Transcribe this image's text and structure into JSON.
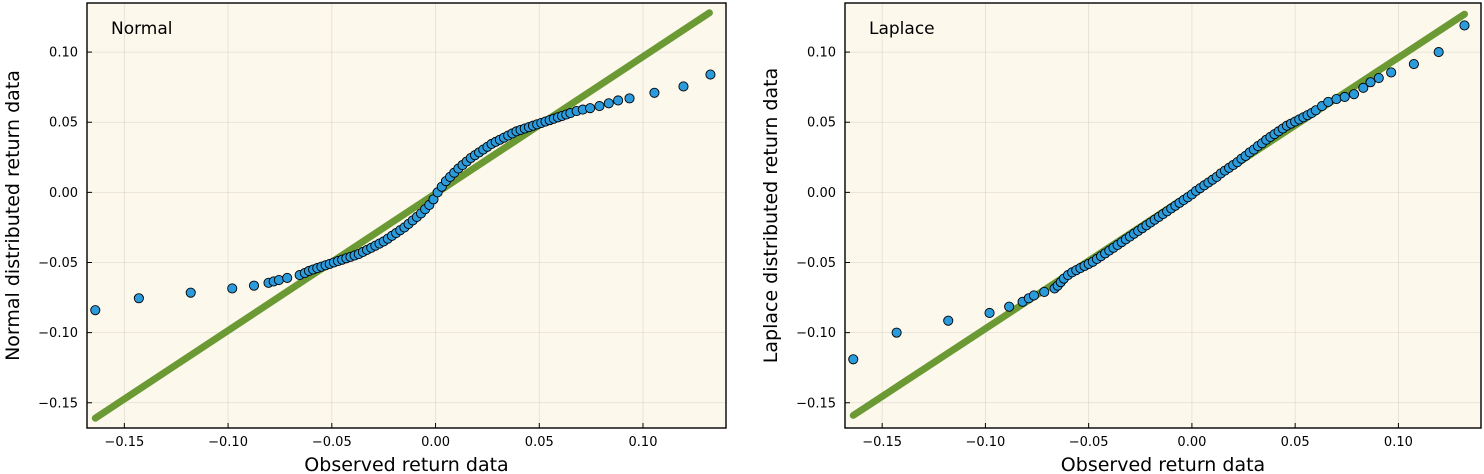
{
  "chart_data": [
    {
      "type": "scatter",
      "title": "Normal",
      "xlabel": "Observed return data",
      "ylabel": "Normal distributed return data",
      "xlim": [
        -0.168,
        0.14
      ],
      "ylim": [
        -0.168,
        0.135
      ],
      "xticks": [
        -0.15,
        -0.1,
        -0.05,
        0.0,
        0.05,
        0.1
      ],
      "xtick_labels": [
        "−0.15",
        "−0.10",
        "−0.05",
        "0.00",
        "0.05",
        "0.10"
      ],
      "yticks": [
        -0.15,
        -0.1,
        -0.05,
        0.0,
        0.05,
        0.1
      ],
      "ytick_labels": [
        "−0.15",
        "−0.10",
        "−0.05",
        "0.00",
        "0.05",
        "0.10"
      ],
      "grid": true,
      "legend": "none",
      "reference_line": {
        "x": [
          -0.164,
          0.132
        ],
        "y": [
          -0.161,
          0.128
        ],
        "color": "#6b9a34"
      },
      "marker_color": "#2b9bdc",
      "background": "#fdf8ec",
      "points": [
        [
          -0.164,
          -0.084
        ],
        [
          -0.143,
          -0.0755
        ],
        [
          -0.118,
          -0.0715
        ],
        [
          -0.098,
          -0.0685
        ],
        [
          -0.0875,
          -0.0665
        ],
        [
          -0.0805,
          -0.0645
        ],
        [
          -0.078,
          -0.0635
        ],
        [
          -0.0755,
          -0.0625
        ],
        [
          -0.0715,
          -0.061
        ],
        [
          -0.0655,
          -0.059
        ],
        [
          -0.063,
          -0.0575
        ],
        [
          -0.061,
          -0.056
        ],
        [
          -0.059,
          -0.055
        ],
        [
          -0.057,
          -0.054
        ],
        [
          -0.055,
          -0.053
        ],
        [
          -0.053,
          -0.052
        ],
        [
          -0.051,
          -0.051
        ],
        [
          -0.049,
          -0.05
        ],
        [
          -0.047,
          -0.049
        ],
        [
          -0.045,
          -0.048
        ],
        [
          -0.043,
          -0.047
        ],
        [
          -0.041,
          -0.046
        ],
        [
          -0.039,
          -0.045
        ],
        [
          -0.037,
          -0.044
        ],
        [
          -0.035,
          -0.0425
        ],
        [
          -0.033,
          -0.041
        ],
        [
          -0.031,
          -0.0395
        ],
        [
          -0.029,
          -0.038
        ],
        [
          -0.027,
          -0.0365
        ],
        [
          -0.025,
          -0.035
        ],
        [
          -0.023,
          -0.033
        ],
        [
          -0.021,
          -0.031
        ],
        [
          -0.019,
          -0.029
        ],
        [
          -0.017,
          -0.027
        ],
        [
          -0.015,
          -0.025
        ],
        [
          -0.013,
          -0.0225
        ],
        [
          -0.011,
          -0.02
        ],
        [
          -0.009,
          -0.0175
        ],
        [
          -0.007,
          -0.015
        ],
        [
          -0.005,
          -0.012
        ],
        [
          -0.003,
          -0.009
        ],
        [
          -0.001,
          -0.005
        ],
        [
          0.001,
          0.0
        ],
        [
          0.003,
          0.004
        ],
        [
          0.005,
          0.008
        ],
        [
          0.007,
          0.011
        ],
        [
          0.009,
          0.014
        ],
        [
          0.011,
          0.017
        ],
        [
          0.013,
          0.0195
        ],
        [
          0.015,
          0.022
        ],
        [
          0.017,
          0.0245
        ],
        [
          0.019,
          0.0265
        ],
        [
          0.021,
          0.0285
        ],
        [
          0.023,
          0.0305
        ],
        [
          0.025,
          0.0325
        ],
        [
          0.027,
          0.0345
        ],
        [
          0.029,
          0.036
        ],
        [
          0.031,
          0.0375
        ],
        [
          0.033,
          0.039
        ],
        [
          0.035,
          0.0405
        ],
        [
          0.037,
          0.042
        ],
        [
          0.039,
          0.0435
        ],
        [
          0.041,
          0.0445
        ],
        [
          0.043,
          0.0455
        ],
        [
          0.045,
          0.0465
        ],
        [
          0.047,
          0.0475
        ],
        [
          0.049,
          0.0485
        ],
        [
          0.051,
          0.0495
        ],
        [
          0.053,
          0.0505
        ],
        [
          0.055,
          0.0515
        ],
        [
          0.057,
          0.0525
        ],
        [
          0.059,
          0.0535
        ],
        [
          0.061,
          0.0545
        ],
        [
          0.063,
          0.0555
        ],
        [
          0.065,
          0.0565
        ],
        [
          0.068,
          0.058
        ],
        [
          0.071,
          0.059
        ],
        [
          0.0745,
          0.06
        ],
        [
          0.079,
          0.0615
        ],
        [
          0.0835,
          0.0635
        ],
        [
          0.088,
          0.0655
        ],
        [
          0.0935,
          0.067
        ],
        [
          0.1055,
          0.071
        ],
        [
          0.1195,
          0.0755
        ],
        [
          0.1325,
          0.084
        ]
      ]
    },
    {
      "type": "scatter",
      "title": "Laplace",
      "xlabel": "Observed return data",
      "ylabel": "Laplace distributed return data",
      "xlim": [
        -0.168,
        0.14
      ],
      "ylim": [
        -0.168,
        0.135
      ],
      "xticks": [
        -0.15,
        -0.1,
        -0.05,
        0.0,
        0.05,
        0.1
      ],
      "xtick_labels": [
        "−0.15",
        "−0.10",
        "−0.05",
        "0.00",
        "0.05",
        "0.10"
      ],
      "yticks": [
        -0.15,
        -0.1,
        -0.05,
        0.0,
        0.05,
        0.1
      ],
      "ytick_labels": [
        "−0.15",
        "−0.10",
        "−0.05",
        "0.00",
        "0.05",
        "0.10"
      ],
      "grid": true,
      "legend": "none",
      "reference_line": {
        "x": [
          -0.164,
          0.132
        ],
        "y": [
          -0.159,
          0.127
        ],
        "color": "#6b9a34"
      },
      "marker_color": "#2b9bdc",
      "background": "#fdf8ec",
      "points": [
        [
          -0.164,
          -0.119
        ],
        [
          -0.143,
          -0.1
        ],
        [
          -0.118,
          -0.0915
        ],
        [
          -0.098,
          -0.086
        ],
        [
          -0.0885,
          -0.0815
        ],
        [
          -0.082,
          -0.078
        ],
        [
          -0.079,
          -0.0755
        ],
        [
          -0.0765,
          -0.0735
        ],
        [
          -0.0715,
          -0.071
        ],
        [
          -0.0665,
          -0.0685
        ],
        [
          -0.065,
          -0.0665
        ],
        [
          -0.0635,
          -0.064
        ],
        [
          -0.062,
          -0.0615
        ],
        [
          -0.06,
          -0.059
        ],
        [
          -0.058,
          -0.057
        ],
        [
          -0.056,
          -0.0555
        ],
        [
          -0.054,
          -0.054
        ],
        [
          -0.052,
          -0.0525
        ],
        [
          -0.05,
          -0.051
        ],
        [
          -0.048,
          -0.0495
        ],
        [
          -0.046,
          -0.0475
        ],
        [
          -0.044,
          -0.0455
        ],
        [
          -0.042,
          -0.0435
        ],
        [
          -0.04,
          -0.0415
        ],
        [
          -0.038,
          -0.0395
        ],
        [
          -0.036,
          -0.0375
        ],
        [
          -0.034,
          -0.0355
        ],
        [
          -0.032,
          -0.0335
        ],
        [
          -0.03,
          -0.0315
        ],
        [
          -0.028,
          -0.0295
        ],
        [
          -0.026,
          -0.0275
        ],
        [
          -0.024,
          -0.0255
        ],
        [
          -0.022,
          -0.0235
        ],
        [
          -0.02,
          -0.0215
        ],
        [
          -0.018,
          -0.0195
        ],
        [
          -0.016,
          -0.0175
        ],
        [
          -0.014,
          -0.0155
        ],
        [
          -0.012,
          -0.0135
        ],
        [
          -0.01,
          -0.0115
        ],
        [
          -0.008,
          -0.0095
        ],
        [
          -0.006,
          -0.0075
        ],
        [
          -0.004,
          -0.0055
        ],
        [
          -0.002,
          -0.0035
        ],
        [
          0.0,
          -0.0015
        ],
        [
          0.002,
          0.001
        ],
        [
          0.004,
          0.003
        ],
        [
          0.006,
          0.005
        ],
        [
          0.008,
          0.007
        ],
        [
          0.01,
          0.009
        ],
        [
          0.012,
          0.011
        ],
        [
          0.014,
          0.0135
        ],
        [
          0.016,
          0.0155
        ],
        [
          0.018,
          0.0175
        ],
        [
          0.02,
          0.0195
        ],
        [
          0.022,
          0.0215
        ],
        [
          0.024,
          0.024
        ],
        [
          0.026,
          0.026
        ],
        [
          0.028,
          0.0285
        ],
        [
          0.03,
          0.0305
        ],
        [
          0.032,
          0.033
        ],
        [
          0.034,
          0.035
        ],
        [
          0.036,
          0.0375
        ],
        [
          0.038,
          0.0395
        ],
        [
          0.04,
          0.0415
        ],
        [
          0.042,
          0.0435
        ],
        [
          0.044,
          0.0455
        ],
        [
          0.046,
          0.0475
        ],
        [
          0.048,
          0.049
        ],
        [
          0.05,
          0.0505
        ],
        [
          0.052,
          0.052
        ],
        [
          0.054,
          0.0535
        ],
        [
          0.056,
          0.055
        ],
        [
          0.058,
          0.0565
        ],
        [
          0.06,
          0.0585
        ],
        [
          0.063,
          0.0615
        ],
        [
          0.066,
          0.0645
        ],
        [
          0.07,
          0.0665
        ],
        [
          0.074,
          0.068
        ],
        [
          0.0785,
          0.07
        ],
        [
          0.083,
          0.0745
        ],
        [
          0.0865,
          0.0785
        ],
        [
          0.0905,
          0.0815
        ],
        [
          0.0965,
          0.0855
        ],
        [
          0.1075,
          0.0915
        ],
        [
          0.1195,
          0.1
        ],
        [
          0.132,
          0.119
        ]
      ]
    }
  ]
}
